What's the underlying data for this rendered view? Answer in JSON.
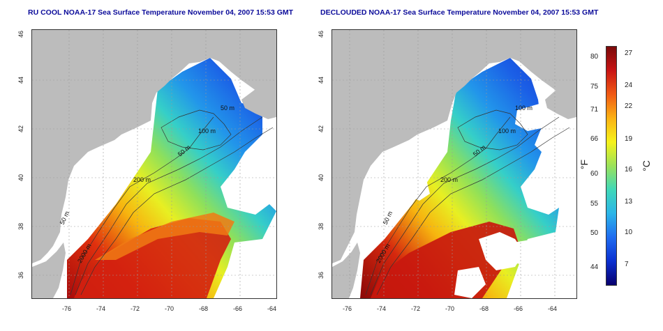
{
  "titles": {
    "left": "RU COOL NOAA-17 Sea Surface Temperature November 04, 2007 15:53 GMT",
    "right": "DECLOUDED NOAA-17 Sea Surface Temperature November 04, 2007 15:53 GMT"
  },
  "axes": {
    "x_ticks": [
      "-76",
      "-74",
      "-72",
      "-70",
      "-68",
      "-66",
      "-64"
    ],
    "y_ticks": [
      "36",
      "38",
      "40",
      "42",
      "44",
      "46"
    ]
  },
  "contour_labels": {
    "left": [
      "100 m",
      "50 m",
      "200 m",
      "50 m",
      "2000 m",
      "50 m"
    ],
    "right": [
      "100 m",
      "50 m",
      "200 m",
      "50 m",
      "2000 m",
      "100 m"
    ]
  },
  "colorbar": {
    "fahrenheit_unit": "°F",
    "celsius_unit": "°C",
    "fahrenheit_ticks": [
      "80",
      "75",
      "71",
      "66",
      "60",
      "55",
      "50",
      "44"
    ],
    "celsius_ticks": [
      "27",
      "24",
      "22",
      "19",
      "16",
      "13",
      "10",
      "7"
    ],
    "colors": [
      "#08006e",
      "#0a30d0",
      "#1f6cf0",
      "#2bb5e8",
      "#40d8b8",
      "#9be25a",
      "#f6f21a",
      "#fbb214",
      "#f05a14",
      "#c81414",
      "#7a0a0a"
    ]
  },
  "colors": {
    "land": "#bcbcbc",
    "title_blue": "#0b0b9a"
  }
}
